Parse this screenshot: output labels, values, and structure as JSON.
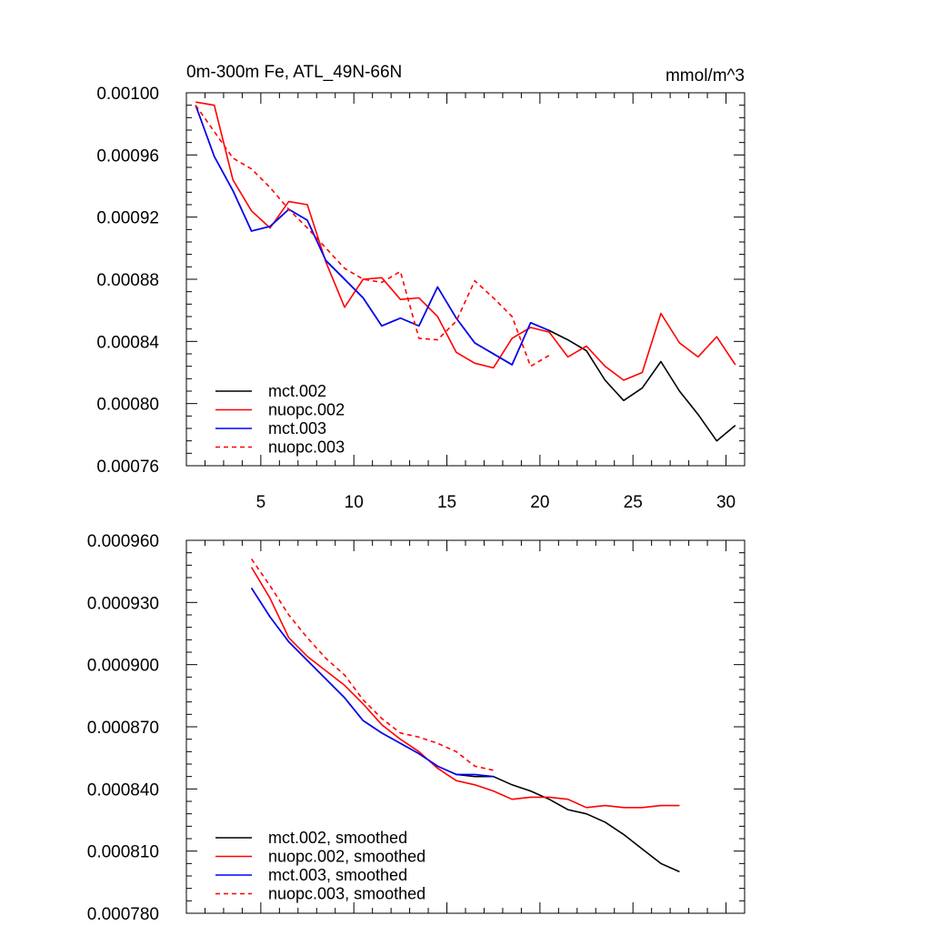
{
  "chart_data": [
    {
      "type": "line",
      "title": "0m-300m Fe, ATL_49N-66N",
      "units": "mmol/m^3",
      "xlabel": "",
      "ylabel": "",
      "xlim": [
        1,
        31
      ],
      "ylim": [
        0.00076,
        0.001
      ],
      "xticks": [
        5,
        10,
        15,
        20,
        25,
        30
      ],
      "xtick_labels": [
        "5",
        "10",
        "15",
        "20",
        "25",
        "30"
      ],
      "yticks": [
        0.00076,
        0.0008,
        0.00084,
        0.00088,
        0.00092,
        0.00096,
        0.001
      ],
      "ytick_labels": [
        "0.00076",
        "0.00080",
        "0.00084",
        "0.00088",
        "0.00092",
        "0.00096",
        "0.00100"
      ],
      "legend_position": "bottom-left",
      "grid": false,
      "series": [
        {
          "name": "mct.002",
          "color": "#000000",
          "dash": "solid",
          "x": [
            1.5,
            2.5,
            3.5,
            4.5,
            5.5,
            6.5,
            7.5,
            8.5,
            9.5,
            10.5,
            11.5,
            12.5,
            13.5,
            14.5,
            15.5,
            16.5,
            17.5,
            18.5,
            19.5,
            20.5,
            21.5,
            22.5,
            23.5,
            24.5,
            25.5,
            26.5,
            27.5,
            28.5,
            29.5,
            30.5
          ],
          "y": [
            0.000992,
            0.000959,
            0.000937,
            0.000911,
            0.000914,
            0.000925,
            0.000918,
            0.000892,
            0.00088,
            0.000868,
            0.00085,
            0.000855,
            0.00085,
            0.000875,
            0.000855,
            0.000839,
            0.000832,
            0.000825,
            0.000852,
            0.000847,
            0.000841,
            0.000834,
            0.000815,
            0.000802,
            0.00081,
            0.000827,
            0.000808,
            0.000793,
            0.000776,
            0.000786
          ]
        },
        {
          "name": "nuopc.002",
          "color": "#ff0000",
          "dash": "solid",
          "x": [
            1.5,
            2.5,
            3.5,
            4.5,
            5.5,
            6.5,
            7.5,
            8.5,
            9.5,
            10.5,
            11.5,
            12.5,
            13.5,
            14.5,
            15.5,
            16.5,
            17.5,
            18.5,
            19.5,
            20.5,
            21.5,
            22.5,
            23.5,
            24.5,
            25.5,
            26.5,
            27.5,
            28.5,
            29.5,
            30.5
          ],
          "y": [
            0.000994,
            0.000992,
            0.000944,
            0.000924,
            0.000913,
            0.00093,
            0.000928,
            0.000891,
            0.000862,
            0.00088,
            0.000881,
            0.000867,
            0.000868,
            0.000856,
            0.000833,
            0.000826,
            0.000823,
            0.000842,
            0.000849,
            0.000846,
            0.00083,
            0.000837,
            0.000824,
            0.000815,
            0.00082,
            0.000858,
            0.000839,
            0.00083,
            0.000843,
            0.000825
          ]
        },
        {
          "name": "mct.003",
          "color": "#0000ff",
          "dash": "solid",
          "x": [
            1.5,
            2.5,
            3.5,
            4.5,
            5.5,
            6.5,
            7.5,
            8.5,
            9.5,
            10.5,
            11.5,
            12.5,
            13.5,
            14.5,
            15.5,
            16.5,
            17.5,
            18.5,
            19.5,
            20.5
          ],
          "y": [
            0.000992,
            0.000959,
            0.000937,
            0.000911,
            0.000914,
            0.000925,
            0.000918,
            0.000892,
            0.00088,
            0.000868,
            0.00085,
            0.000855,
            0.00085,
            0.000875,
            0.000855,
            0.000839,
            0.000832,
            0.000825,
            0.000852,
            0.000847
          ]
        },
        {
          "name": "nuopc.003",
          "color": "#ff0000",
          "dash": "dashed",
          "x": [
            1.5,
            2.5,
            3.5,
            4.5,
            5.5,
            6.5,
            7.5,
            8.5,
            9.5,
            10.5,
            11.5,
            12.5,
            13.5,
            14.5,
            15.5,
            16.5,
            17.5,
            18.5,
            19.5,
            20.5
          ],
          "y": [
            0.000992,
            0.000975,
            0.000958,
            0.000951,
            0.000939,
            0.000925,
            0.000913,
            0.0009,
            0.000887,
            0.00088,
            0.000878,
            0.000885,
            0.000842,
            0.000841,
            0.000853,
            0.000879,
            0.000868,
            0.000856,
            0.000824,
            0.000831
          ]
        }
      ]
    },
    {
      "type": "line",
      "title": "",
      "xlabel": "",
      "ylabel": "",
      "xlim": [
        1,
        31
      ],
      "ylim": [
        0.00078,
        0.00096
      ],
      "xticks": [
        5,
        10,
        15,
        20,
        25,
        30
      ],
      "xtick_labels": [],
      "yticks": [
        0.00078,
        0.00081,
        0.00084,
        0.00087,
        0.0009,
        0.00093,
        0.00096
      ],
      "ytick_labels": [
        "0.000780",
        "0.000810",
        "0.000840",
        "0.000870",
        "0.000900",
        "0.000930",
        "0.000960"
      ],
      "legend_position": "bottom-left",
      "grid": false,
      "series": [
        {
          "name": "mct.002, smoothed",
          "color": "#000000",
          "dash": "solid",
          "x": [
            4.5,
            5.5,
            6.5,
            7.5,
            8.5,
            9.5,
            10.5,
            11.5,
            12.5,
            13.5,
            14.5,
            15.5,
            16.5,
            17.5,
            18.5,
            19.5,
            20.5,
            21.5,
            22.5,
            23.5,
            24.5,
            25.5,
            26.5,
            27.5
          ],
          "y": [
            0.000937,
            0.000923,
            0.000911,
            0.000902,
            0.000893,
            0.000884,
            0.000873,
            0.000867,
            0.000862,
            0.000857,
            0.000851,
            0.000847,
            0.000846,
            0.000846,
            0.000842,
            0.000839,
            0.000835,
            0.00083,
            0.000828,
            0.000824,
            0.000818,
            0.000811,
            0.000804,
            0.0008
          ]
        },
        {
          "name": "nuopc.002, smoothed",
          "color": "#ff0000",
          "dash": "solid",
          "x": [
            4.5,
            5.5,
            6.5,
            7.5,
            8.5,
            9.5,
            10.5,
            11.5,
            12.5,
            13.5,
            14.5,
            15.5,
            16.5,
            17.5,
            18.5,
            19.5,
            20.5,
            21.5,
            22.5,
            23.5,
            24.5,
            25.5,
            26.5,
            27.5
          ],
          "y": [
            0.000947,
            0.000932,
            0.000913,
            0.000904,
            0.000897,
            0.00089,
            0.000881,
            0.000871,
            0.000864,
            0.000858,
            0.00085,
            0.000844,
            0.000842,
            0.000839,
            0.000835,
            0.000836,
            0.000836,
            0.000835,
            0.000831,
            0.000832,
            0.000831,
            0.000831,
            0.000832,
            0.000832
          ]
        },
        {
          "name": "mct.003, smoothed",
          "color": "#0000ff",
          "dash": "solid",
          "x": [
            4.5,
            5.5,
            6.5,
            7.5,
            8.5,
            9.5,
            10.5,
            11.5,
            12.5,
            13.5,
            14.5,
            15.5,
            16.5,
            17.5
          ],
          "y": [
            0.000937,
            0.000923,
            0.000911,
            0.000902,
            0.000893,
            0.000884,
            0.000873,
            0.000867,
            0.000862,
            0.000857,
            0.000851,
            0.000847,
            0.000847,
            0.000846
          ]
        },
        {
          "name": "nuopc.003, smoothed",
          "color": "#ff0000",
          "dash": "dashed",
          "x": [
            4.5,
            5.5,
            6.5,
            7.5,
            8.5,
            9.5,
            10.5,
            11.5,
            12.5,
            13.5,
            14.5,
            15.5,
            16.5,
            17.5
          ],
          "y": [
            0.000951,
            0.000938,
            0.000924,
            0.000913,
            0.000903,
            0.000895,
            0.000883,
            0.000874,
            0.000867,
            0.000865,
            0.000862,
            0.000858,
            0.000851,
            0.000849
          ]
        }
      ]
    }
  ]
}
